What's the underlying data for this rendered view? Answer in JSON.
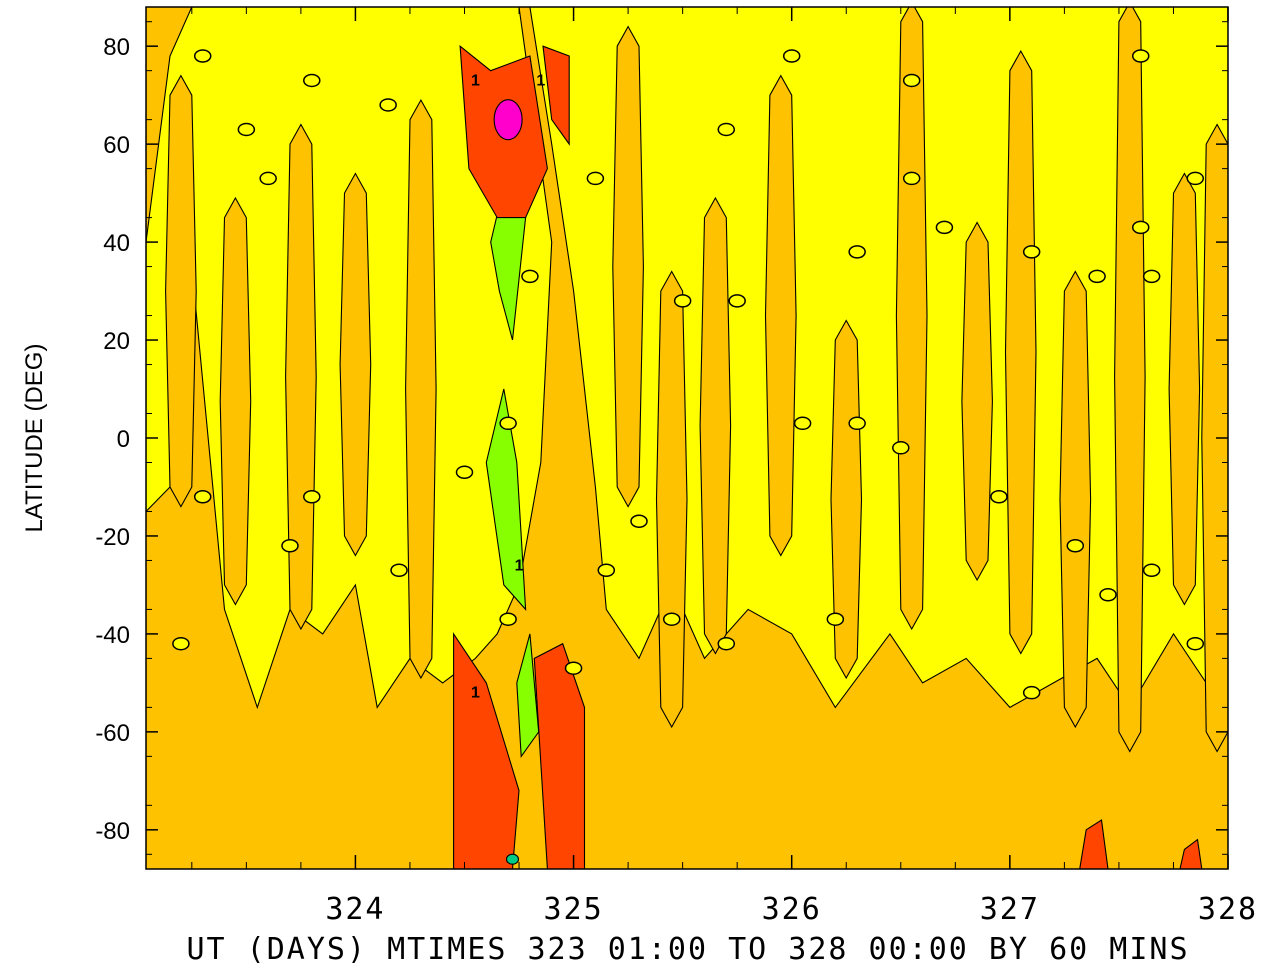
{
  "chart_data": {
    "type": "heatmap",
    "title": "",
    "xlabel": "UT (DAYS) MTIMES 323 01:00 TO 328 00:00 BY   60 MINS",
    "ylabel": "LATITUDE (DEG)",
    "xlim": [
      323.04,
      328.0
    ],
    "ylim": [
      -88,
      88
    ],
    "x_ticks": [
      "324",
      "325",
      "326",
      "327",
      "328"
    ],
    "y_ticks": [
      "80",
      "60",
      "40",
      "20",
      "0",
      "-20",
      "-40",
      "-60",
      "-80"
    ],
    "grid": false,
    "colors": {
      "orange": "#ffc200",
      "yellow": "#ffff00",
      "red": "#ff4500",
      "magenta": "#ff00cc",
      "green": "#88ff00",
      "teal": "#00cc88",
      "line": "#000000"
    },
    "features": [
      {
        "name": "positive-max-north",
        "x": 324.7,
        "y": 65,
        "level": "magenta"
      },
      {
        "name": "positive-south-1",
        "x": 324.6,
        "y": -75,
        "level": "red"
      },
      {
        "name": "positive-south-2",
        "x": 324.9,
        "y": -65,
        "level": "red"
      },
      {
        "name": "negative-band",
        "x": 324.7,
        "y": 0,
        "level": "green"
      }
    ],
    "contour_labels": [
      {
        "text": "0",
        "x": 323.3,
        "y": 78
      },
      {
        "text": "0",
        "x": 323.8,
        "y": 73
      },
      {
        "text": "0",
        "x": 324.15,
        "y": 68
      },
      {
        "text": "0",
        "x": 323.5,
        "y": 63
      },
      {
        "text": "0",
        "x": 323.6,
        "y": 53
      },
      {
        "text": "0",
        "x": 325.1,
        "y": 53
      },
      {
        "text": "0",
        "x": 325.7,
        "y": 63
      },
      {
        "text": "0",
        "x": 326.0,
        "y": 78
      },
      {
        "text": "0",
        "x": 326.55,
        "y": 73
      },
      {
        "text": "0",
        "x": 326.55,
        "y": 53
      },
      {
        "text": "0",
        "x": 327.6,
        "y": 78
      },
      {
        "text": "0",
        "x": 327.85,
        "y": 53
      },
      {
        "text": "0",
        "x": 326.7,
        "y": 43
      },
      {
        "text": "0",
        "x": 327.6,
        "y": 43
      },
      {
        "text": "0",
        "x": 326.3,
        "y": 38
      },
      {
        "text": "0",
        "x": 327.1,
        "y": 38
      },
      {
        "text": "0",
        "x": 324.8,
        "y": 33
      },
      {
        "text": "0",
        "x": 327.4,
        "y": 33
      },
      {
        "text": "0",
        "x": 327.65,
        "y": 33
      },
      {
        "text": "0",
        "x": 325.5,
        "y": 28
      },
      {
        "text": "0",
        "x": 325.75,
        "y": 28
      },
      {
        "text": "0",
        "x": 324.7,
        "y": 3
      },
      {
        "text": "0",
        "x": 326.05,
        "y": 3
      },
      {
        "text": "0",
        "x": 326.3,
        "y": 3
      },
      {
        "text": "0",
        "x": 326.5,
        "y": -2
      },
      {
        "text": "0",
        "x": 324.5,
        "y": -7
      },
      {
        "text": "0",
        "x": 323.3,
        "y": -12
      },
      {
        "text": "0",
        "x": 323.8,
        "y": -12
      },
      {
        "text": "0",
        "x": 326.95,
        "y": -12
      },
      {
        "text": "0",
        "x": 325.3,
        "y": -17
      },
      {
        "text": "0",
        "x": 323.7,
        "y": -22
      },
      {
        "text": "0",
        "x": 327.3,
        "y": -22
      },
      {
        "text": "0",
        "x": 324.2,
        "y": -27
      },
      {
        "text": "0",
        "x": 325.15,
        "y": -27
      },
      {
        "text": "0",
        "x": 327.65,
        "y": -27
      },
      {
        "text": "0",
        "x": 327.45,
        "y": -32
      },
      {
        "text": "0",
        "x": 323.2,
        "y": -42
      },
      {
        "text": "0",
        "x": 324.7,
        "y": -37
      },
      {
        "text": "0",
        "x": 325.45,
        "y": -37
      },
      {
        "text": "0",
        "x": 325.7,
        "y": -42
      },
      {
        "text": "0",
        "x": 326.2,
        "y": -37
      },
      {
        "text": "0",
        "x": 327.85,
        "y": -42
      },
      {
        "text": "0",
        "x": 325.0,
        "y": -47
      },
      {
        "text": "0",
        "x": 327.1,
        "y": -52
      },
      {
        "text": "1",
        "x": 324.55,
        "y": 73
      },
      {
        "text": "1",
        "x": 324.85,
        "y": 73
      },
      {
        "text": "1",
        "x": 324.55,
        "y": -52
      },
      {
        "text": "1",
        "x": 324.75,
        "y": -26
      }
    ]
  }
}
